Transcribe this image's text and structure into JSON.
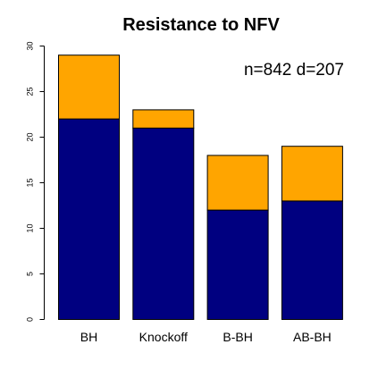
{
  "chart_data": {
    "type": "bar",
    "stacked": true,
    "title": "Resistance to NFV",
    "annotation": "n=842 d=207",
    "categories": [
      "BH",
      "Knockoff",
      "B-BH",
      "AB-BH"
    ],
    "series": [
      {
        "values": [
          22,
          21,
          12,
          13
        ],
        "color": "#000080"
      },
      {
        "values": [
          7,
          2,
          6,
          6
        ],
        "color": "#FFA500"
      }
    ],
    "xlabel": "",
    "ylabel": "",
    "ylim": [
      0,
      30
    ],
    "yticks": [
      "0",
      "5",
      "10",
      "15",
      "20",
      "25",
      "30"
    ],
    "grid": false,
    "legend": "none"
  }
}
